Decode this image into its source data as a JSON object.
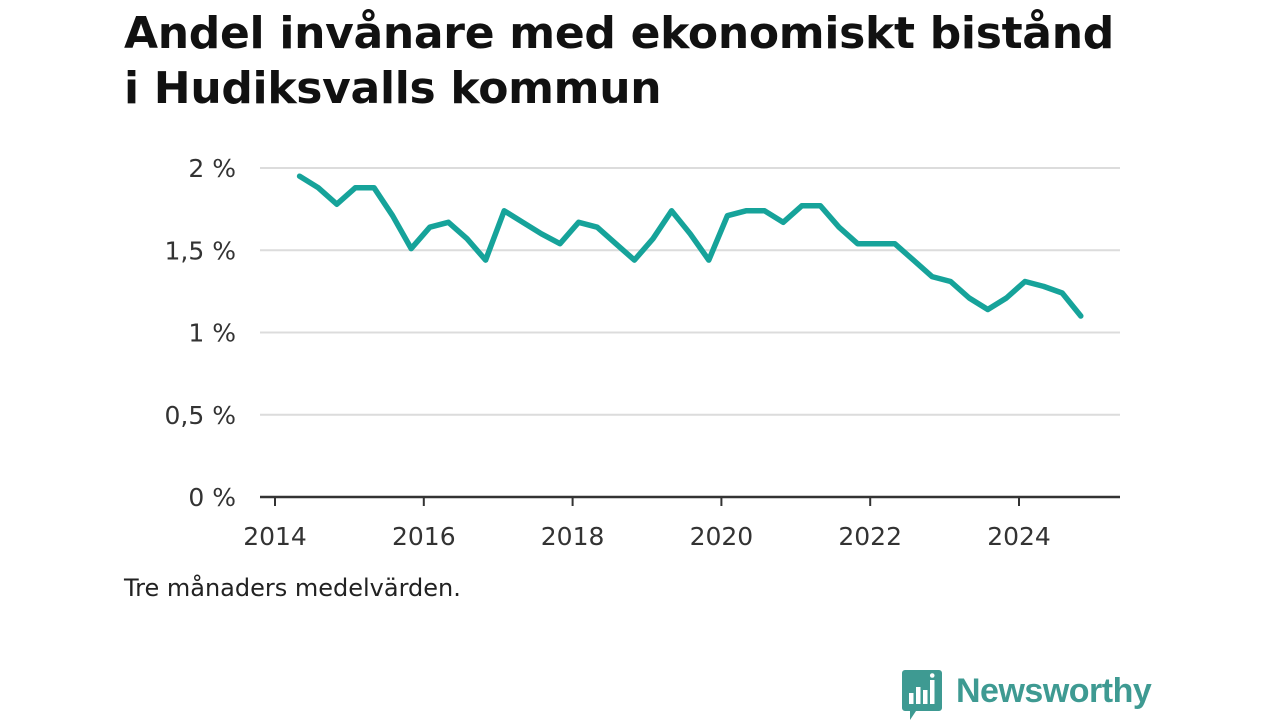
{
  "title": "Andel invånare med ekonomiskt bistånd i Hudiksvalls kommun",
  "footnote": "Tre månaders medelvärden.",
  "brand": {
    "name": "Newsworthy",
    "color": "#3e9a92"
  },
  "chart_data": {
    "type": "line",
    "title": "Andel invånare med ekonomiskt bistånd i Hudiksvalls kommun",
    "xlabel": "",
    "ylabel": "",
    "xlim": [
      2014,
      2025.5
    ],
    "ylim": [
      0,
      2
    ],
    "y_ticks": [
      0,
      0.5,
      1,
      1.5,
      2
    ],
    "y_tick_labels": [
      "0 %",
      "0,5 %",
      "1 %",
      "1,5 %",
      "2 %"
    ],
    "x_ticks": [
      2014,
      2016,
      2018,
      2020,
      2022,
      2024
    ],
    "x_tick_labels": [
      "2014",
      "2016",
      "2018",
      "2020",
      "2022",
      "2024"
    ],
    "grid": true,
    "line_color": "#16a39a",
    "series": [
      {
        "x": [
          2014.33,
          2014.58,
          2014.83,
          2015.08,
          2015.33,
          2015.58,
          2015.83,
          2016.08,
          2016.33,
          2016.58,
          2016.83,
          2017.08,
          2017.33,
          2017.58,
          2017.83,
          2018.08,
          2018.33,
          2018.58,
          2018.83,
          2019.08,
          2019.33,
          2019.58,
          2019.83,
          2020.08,
          2020.33,
          2020.58,
          2020.83,
          2021.08,
          2021.33,
          2021.58,
          2021.83,
          2022.08,
          2022.33,
          2022.58,
          2022.83,
          2023.08,
          2023.33,
          2023.58,
          2023.83,
          2024.08,
          2024.33,
          2024.58,
          2024.83
        ],
        "values": [
          1.95,
          1.88,
          1.78,
          1.88,
          1.88,
          1.71,
          1.51,
          1.64,
          1.67,
          1.57,
          1.44,
          1.74,
          1.67,
          1.6,
          1.54,
          1.67,
          1.64,
          1.54,
          1.44,
          1.57,
          1.74,
          1.6,
          1.44,
          1.71,
          1.74,
          1.74,
          1.67,
          1.77,
          1.77,
          1.64,
          1.54,
          1.54,
          1.54,
          1.44,
          1.34,
          1.31,
          1.21,
          1.14,
          1.21,
          1.31,
          1.28,
          1.24,
          1.1
        ]
      }
    ]
  }
}
